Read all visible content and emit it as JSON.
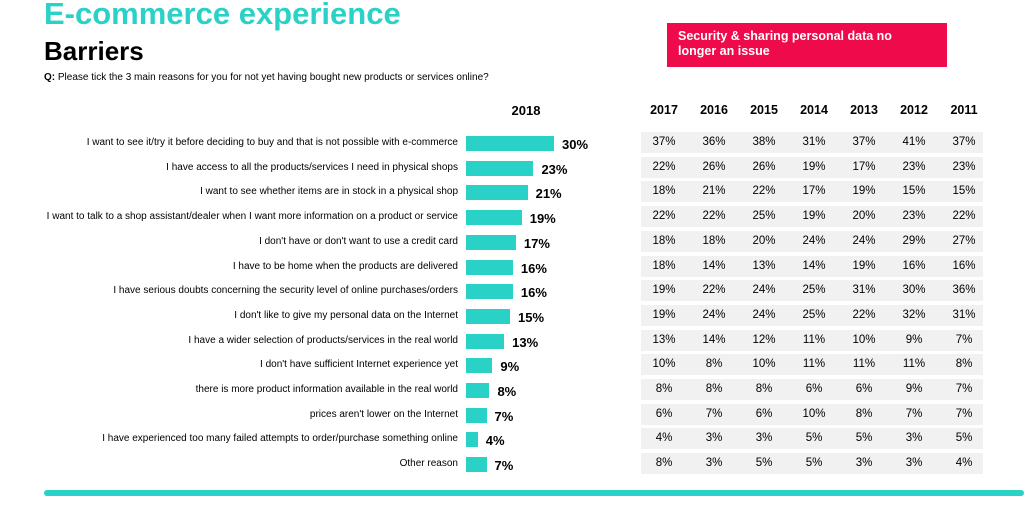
{
  "header": {
    "title": "E-commerce experience",
    "subtitle": "Barriers",
    "question_prefix": "Q:",
    "question_text": "Please tick the 3 main reasons for you for not yet having bought new products or services online?"
  },
  "callout": {
    "line1": "Security & sharing personal data no",
    "line2": "longer an issue",
    "color": "#ee0a4b"
  },
  "colors": {
    "accent": "#2ad1c6",
    "row_band": "#f1f1f1"
  },
  "chart_data": {
    "type": "bar",
    "orientation": "horizontal",
    "series_header": "2018",
    "categories": [
      "I want to see it/try it before deciding to buy and that is not possible with e-commerce",
      "I have access to all the products/services I need in physical shops",
      "I want to see whether items are in stock in a physical shop",
      "I want to talk to a shop assistant/dealer when I want more information on a product or service",
      "I don't have or don't want to use a credit card",
      "I have to be home when the products are delivered",
      "I have serious doubts concerning the security level of online purchases/orders",
      "I don't like to give my personal data on the Internet",
      "I have a wider selection of products/services in the real world",
      "I don't have sufficient Internet experience yet",
      "there is more product information available in the real world",
      "prices aren't lower on the Internet",
      "I have experienced too many failed attempts to order/purchase something online",
      "Other reason"
    ],
    "values": [
      30,
      23,
      21,
      19,
      17,
      16,
      16,
      15,
      13,
      9,
      8,
      7,
      4,
      7
    ],
    "value_labels": [
      "30%",
      "23%",
      "21%",
      "19%",
      "17%",
      "16%",
      "16%",
      "15%",
      "13%",
      "9%",
      "8%",
      "7%",
      "4%",
      "7%"
    ],
    "xlim": [
      0,
      30
    ],
    "grid": false,
    "legend": "none"
  },
  "table": {
    "years": [
      "2017",
      "2016",
      "2015",
      "2014",
      "2013",
      "2012",
      "2011"
    ],
    "rows": [
      [
        "37%",
        "36%",
        "38%",
        "31%",
        "37%",
        "41%",
        "37%"
      ],
      [
        "22%",
        "26%",
        "26%",
        "19%",
        "17%",
        "23%",
        "23%"
      ],
      [
        "18%",
        "21%",
        "22%",
        "17%",
        "19%",
        "15%",
        "15%"
      ],
      [
        "22%",
        "22%",
        "25%",
        "19%",
        "20%",
        "23%",
        "22%"
      ],
      [
        "18%",
        "18%",
        "20%",
        "24%",
        "24%",
        "29%",
        "27%"
      ],
      [
        "18%",
        "14%",
        "13%",
        "14%",
        "19%",
        "16%",
        "16%"
      ],
      [
        "19%",
        "22%",
        "24%",
        "25%",
        "31%",
        "30%",
        "36%"
      ],
      [
        "19%",
        "24%",
        "24%",
        "25%",
        "22%",
        "32%",
        "31%"
      ],
      [
        "13%",
        "14%",
        "12%",
        "11%",
        "10%",
        "9%",
        "7%"
      ],
      [
        "10%",
        "8%",
        "10%",
        "11%",
        "11%",
        "11%",
        "8%"
      ],
      [
        "8%",
        "8%",
        "8%",
        "6%",
        "6%",
        "9%",
        "7%"
      ],
      [
        "6%",
        "7%",
        "6%",
        "10%",
        "8%",
        "7%",
        "7%"
      ],
      [
        "4%",
        "3%",
        "3%",
        "5%",
        "5%",
        "3%",
        "5%"
      ],
      [
        "8%",
        "3%",
        "5%",
        "5%",
        "3%",
        "3%",
        "4%"
      ]
    ]
  }
}
